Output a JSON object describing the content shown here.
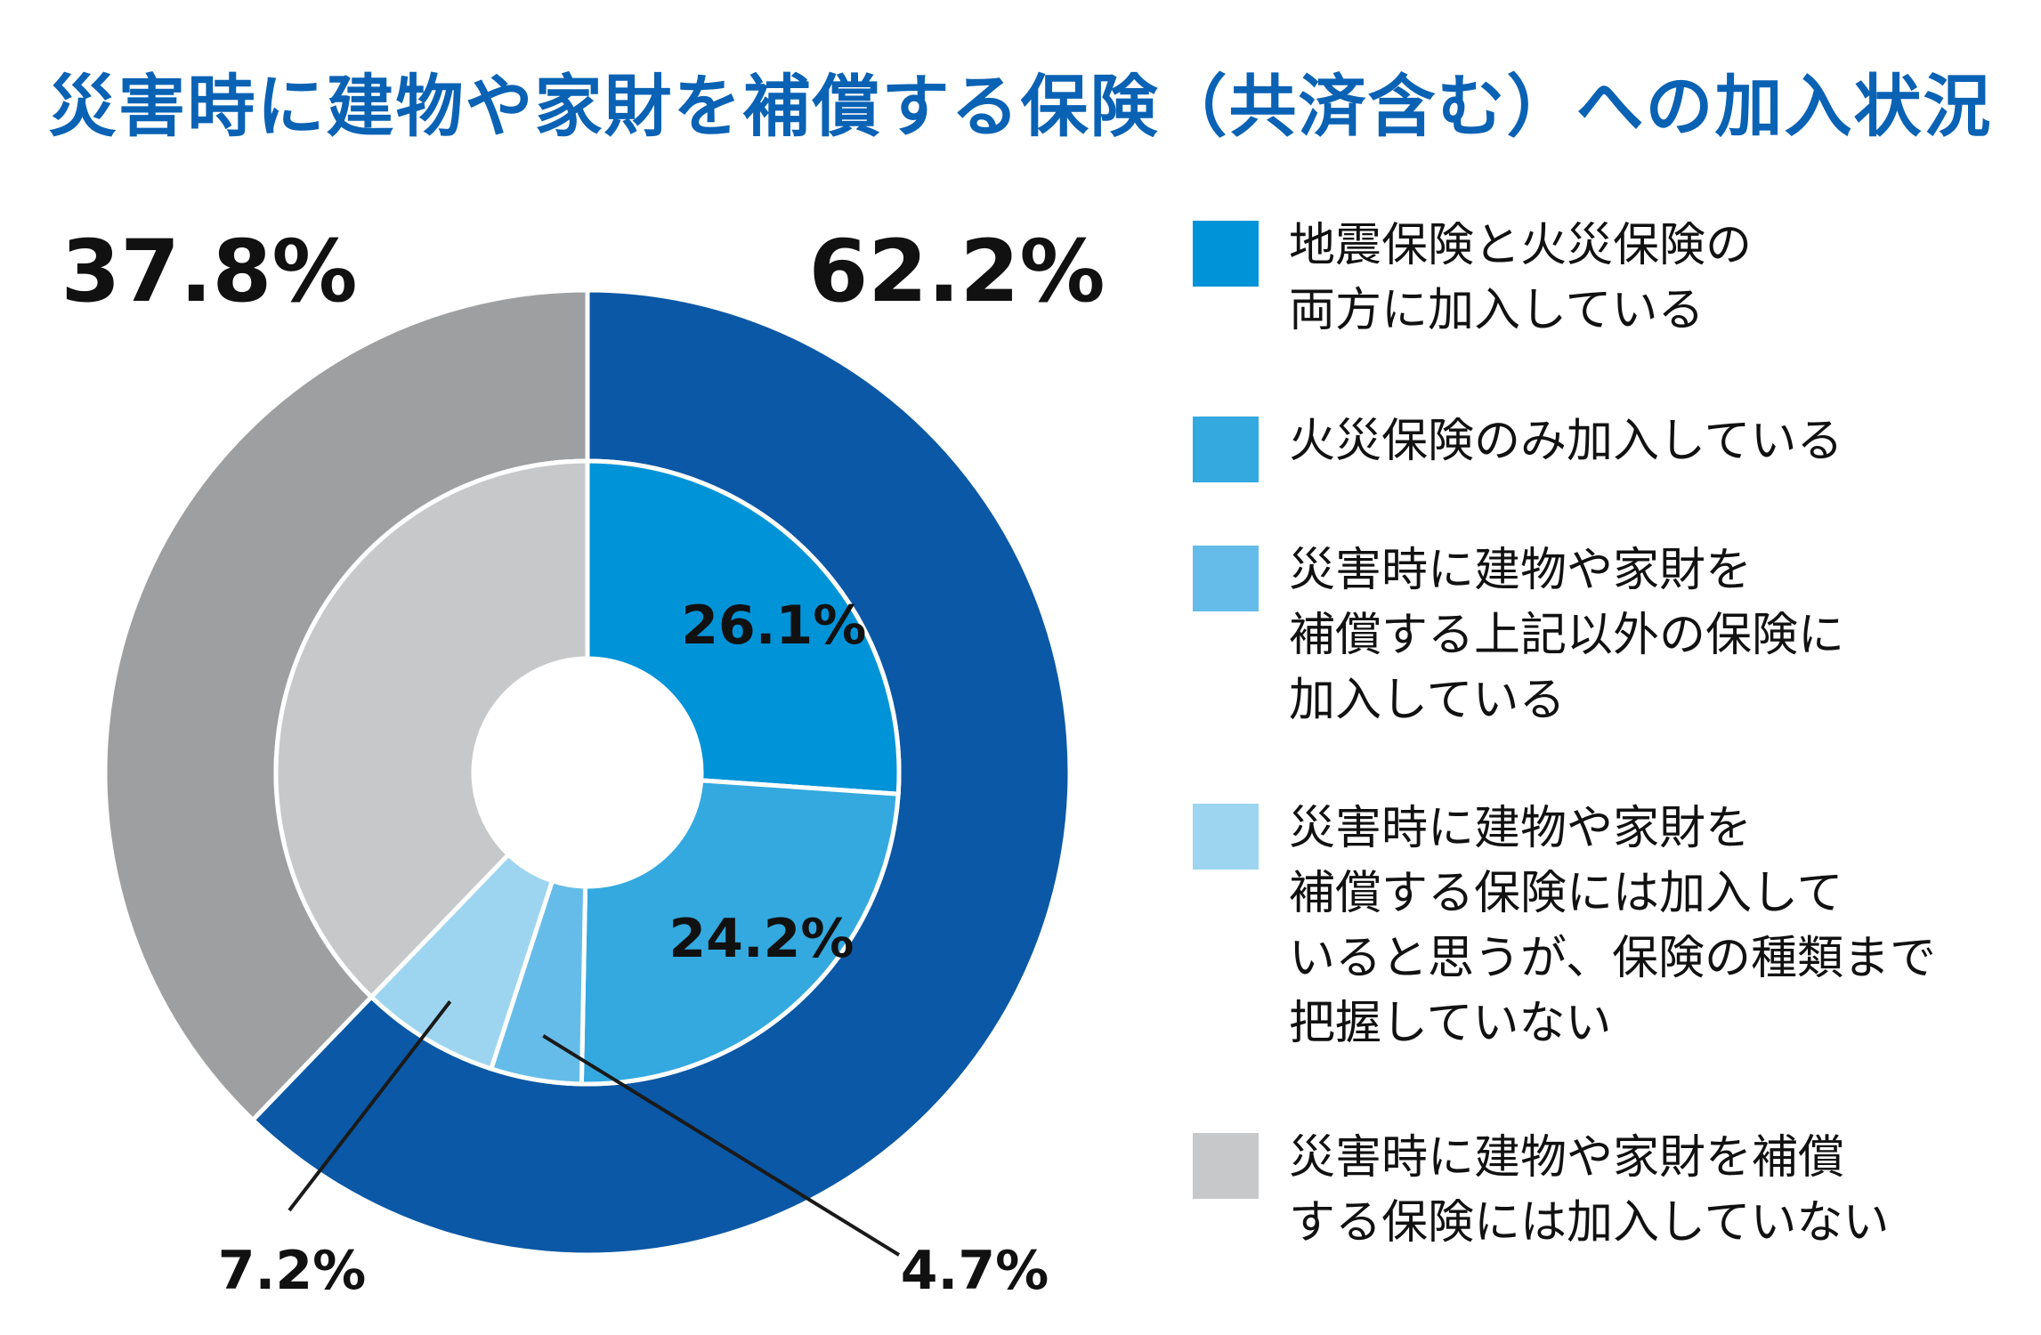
{
  "chart_data": {
    "type": "pie",
    "title": "災害時に建物や家財を補償する保険（共済含む）への加入状況",
    "outer_ring": {
      "slices": [
        {
          "label": "62.2%",
          "value": 62.2,
          "color": "#0b58a6"
        },
        {
          "label": "37.8%",
          "value": 37.8,
          "color": "#9e9fa0"
        }
      ]
    },
    "inner_ring": {
      "slices": [
        {
          "label": "26.1%",
          "value": 26.1,
          "color": "#0093d8"
        },
        {
          "label": "24.2%",
          "value": 24.2,
          "color": "#33a9df"
        },
        {
          "label": "4.7%",
          "value": 4.7,
          "color": "#65bce8"
        },
        {
          "label": "7.2%",
          "value": 7.2,
          "color": "#9dd5f0"
        },
        {
          "label": "",
          "value": 37.8,
          "color": "#c7c8c9"
        }
      ]
    },
    "legend": {
      "placement": "right",
      "items": [
        {
          "label": "地震保険と火災保険の\n両方に加入している",
          "color": "#0093d8"
        },
        {
          "label": "火災保険のみ加入している",
          "color": "#33a9df"
        },
        {
          "label": "災害時に建物や家財を\n補償する上記以外の保険に\n加入している",
          "color": "#65bce8"
        },
        {
          "label": "災害時に建物や家財を\n補償する保険には加入して\nいると思うが、保険の種類まで\n把握していない",
          "color": "#9dd5f0"
        },
        {
          "label": "災害時に建物や家財を補償\nする保険には加入していない",
          "color": "#c7c8c9"
        }
      ]
    }
  }
}
